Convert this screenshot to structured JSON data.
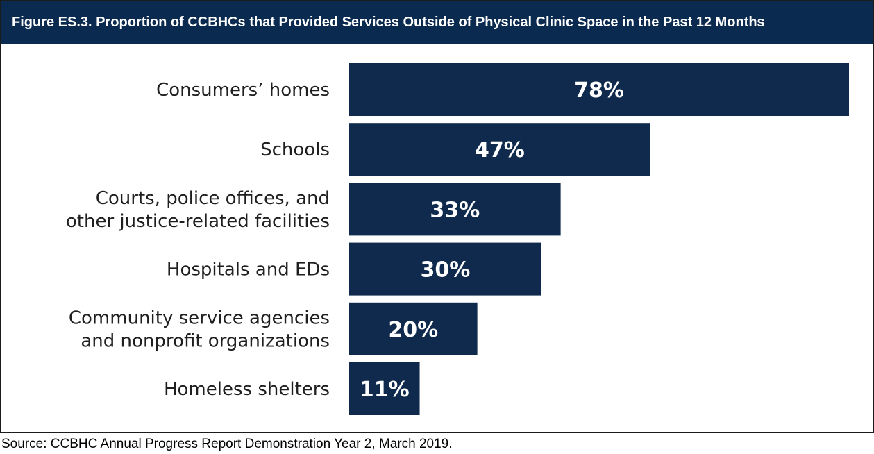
{
  "figure": {
    "title": "Figure ES.3. Proportion of CCBHCs that Provided Services Outside of Physical Clinic Space in the Past 12 Months",
    "source": "Source:  CCBHC Annual Progress Report Demonstration Year 2, March 2019."
  },
  "colors": {
    "title_bg": "#0b2a4f",
    "bar": "#0f2a4c",
    "bar_text": "#ffffff"
  },
  "chart_data": {
    "type": "bar",
    "orientation": "horizontal",
    "categories": [
      [
        "Consumers’ homes"
      ],
      [
        "Schools"
      ],
      [
        "Courts, police offices, and",
        "other justice-related facilities"
      ],
      [
        "Hospitals and EDs"
      ],
      [
        "Community service agencies",
        "and nonprofit organizations"
      ],
      [
        "Homeless shelters"
      ]
    ],
    "values": [
      78,
      47,
      33,
      30,
      20,
      11
    ],
    "value_labels": [
      "78%",
      "47%",
      "33%",
      "30%",
      "20%",
      "11%"
    ],
    "unit": "%",
    "xlim": [
      0,
      78
    ],
    "grid": false,
    "legend": "none"
  }
}
